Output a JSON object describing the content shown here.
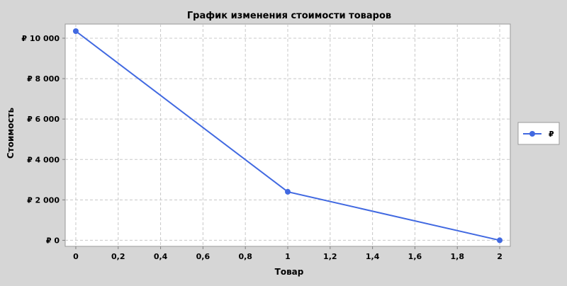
{
  "chart_data": {
    "type": "line",
    "title": "График изменения стоимости товаров",
    "xlabel": "Товар",
    "ylabel": "Стоимость",
    "xlim": [
      -0.05,
      2.05
    ],
    "ylim": [
      -300,
      10700
    ],
    "x_ticks": [
      0,
      0.2,
      0.4,
      0.6,
      0.8,
      1,
      1.2,
      1.4,
      1.6,
      1.8,
      2
    ],
    "x_tick_labels": [
      "0",
      "0,2",
      "0,4",
      "0,6",
      "0,8",
      "1",
      "1,2",
      "1,4",
      "1,6",
      "1,8",
      "2"
    ],
    "y_ticks": [
      0,
      2000,
      4000,
      6000,
      8000,
      10000
    ],
    "y_tick_labels": [
      "₽ 0",
      "₽ 2 000",
      "₽ 4 000",
      "₽ 6 000",
      "₽ 8 000",
      "₽ 10 000"
    ],
    "grid": true,
    "legend_placement": "right",
    "series": [
      {
        "name": "₽",
        "color": "#4169e1",
        "x": [
          0,
          1,
          2
        ],
        "y": [
          10350,
          2400,
          0
        ]
      }
    ]
  }
}
